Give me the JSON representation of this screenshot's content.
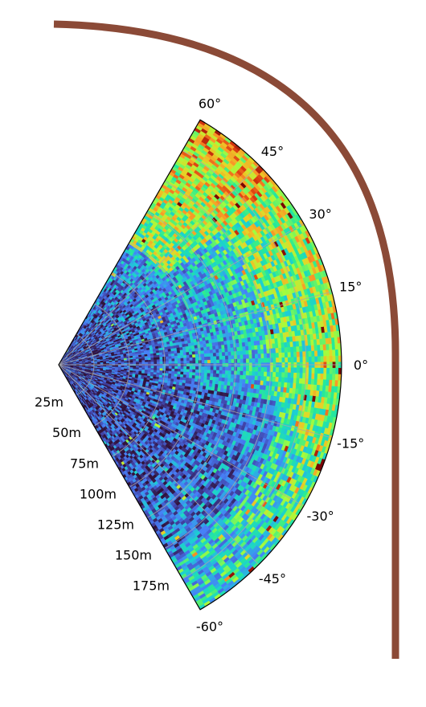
{
  "chart_data": {
    "type": "heatmap",
    "projection": "polar sector",
    "theta_ticks": [
      "60°",
      "45°",
      "30°",
      "15°",
      "0°",
      "-15°",
      "-30°",
      "-45°",
      "-60°"
    ],
    "theta_values_deg": [
      60,
      45,
      30,
      15,
      0,
      -15,
      -30,
      -45,
      -60
    ],
    "r_ticks": [
      "25m",
      "50m",
      "75m",
      "100m",
      "125m",
      "150m",
      "175m"
    ],
    "r_values_m": [
      25,
      50,
      75,
      100,
      125,
      150,
      175
    ],
    "theta_range_deg": [
      -60,
      60
    ],
    "r_range_m": [
      0,
      200
    ],
    "colormap": "turbo",
    "grid": true,
    "frame_color": "#8b4a37",
    "zones": [
      {
        "description": "high returns near upper edge",
        "theta_deg": [
          40,
          60
        ],
        "r_m": [
          100,
          200
        ],
        "level": 0.78
      },
      {
        "description": "elevated along outer arc",
        "theta_deg": [
          -15,
          40
        ],
        "r_m": [
          150,
          200
        ],
        "level": 0.6
      },
      {
        "description": "low returns lower half",
        "theta_deg": [
          -60,
          -10
        ],
        "r_m": [
          20,
          160
        ],
        "level": 0.12
      },
      {
        "description": "moderate near outer lower edge",
        "theta_deg": [
          -60,
          -40
        ],
        "r_m": [
          170,
          200
        ],
        "level": 0.35
      }
    ]
  }
}
